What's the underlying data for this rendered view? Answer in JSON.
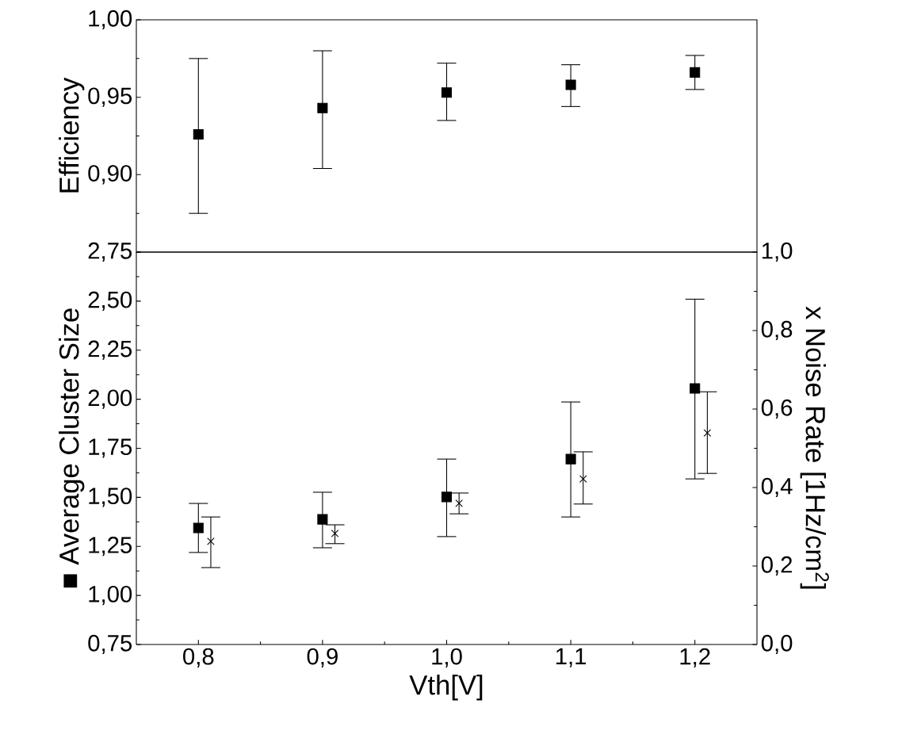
{
  "chart_data": [
    {
      "type": "scatter",
      "ylabel": "Efficiency",
      "x": [
        0.8,
        0.9,
        1.0,
        1.1,
        1.2
      ],
      "values": [
        0.926,
        0.943,
        0.953,
        0.958,
        0.966
      ],
      "errors": [
        [
          0.875,
          0.975
        ],
        [
          0.904,
          0.98
        ],
        [
          0.935,
          0.972
        ],
        [
          0.944,
          0.971
        ],
        [
          0.955,
          0.977
        ]
      ],
      "color": "#000000",
      "marker": "square",
      "xlim": [
        0.75,
        1.25
      ],
      "ylim": [
        0.85,
        1.0
      ],
      "yticks": [
        {
          "value": 0.85,
          "label": null
        },
        {
          "value": 0.9,
          "label": "0,90"
        },
        {
          "value": 0.95,
          "label": "0,95"
        },
        {
          "value": 1.0,
          "label": "1,00"
        }
      ],
      "tick_labels": "y",
      "grid": false,
      "legend": false
    },
    {
      "type": "scatter",
      "xlabel": "Vth[V]",
      "ylabel": "■ Average Cluster Size",
      "y2label": "x Noise Rate [1Hz/cm$^{2}$]",
      "series": [
        {
          "x": [
            0.8,
            0.9,
            1.0,
            1.1,
            1.2
          ],
          "values": [
            1.344,
            1.388,
            1.502,
            1.695,
            2.055
          ],
          "errors": [
            [
              1.219,
              1.469
            ],
            [
              1.243,
              1.526
            ],
            [
              1.3,
              1.695
            ],
            [
              1.4,
              1.986
            ],
            [
              1.594,
              2.51
            ]
          ],
          "color": "#000000",
          "marker": "square"
        },
        {
          "x": [
            0.81,
            0.91,
            1.01,
            1.11,
            1.21
          ],
          "values": [
            0.263,
            0.283,
            0.36,
            0.422,
            0.539
          ],
          "errors": [
            [
              0.196,
              0.325
            ],
            [
              0.257,
              0.305
            ],
            [
              0.333,
              0.386
            ],
            [
              0.358,
              0.491
            ],
            [
              0.436,
              0.644
            ]
          ],
          "color": "#000000",
          "marker": "cross",
          "axis": "y2"
        }
      ],
      "xlim": [
        0.75,
        1.25
      ],
      "ylim": [
        0.75,
        2.75
      ],
      "y2lim": [
        0.0,
        1.0
      ],
      "xticks": [
        {
          "value": 0.8,
          "label": "0,8"
        },
        {
          "value": 0.9,
          "label": "0,9"
        },
        {
          "value": 1.0,
          "label": "1,0"
        },
        {
          "value": 1.1,
          "label": "1,1"
        },
        {
          "value": 1.2,
          "label": "1,2"
        }
      ],
      "yticks": [
        {
          "value": 0.75,
          "label": "0,75"
        },
        {
          "value": 1.0,
          "label": "1,00"
        },
        {
          "value": 1.25,
          "label": "1,25"
        },
        {
          "value": 1.5,
          "label": "1,50"
        },
        {
          "value": 1.75,
          "label": "1,75"
        },
        {
          "value": 2.0,
          "label": "2,00"
        },
        {
          "value": 2.25,
          "label": "2,25"
        },
        {
          "value": 2.5,
          "label": "2,50"
        },
        {
          "value": 2.75,
          "label": "2,75"
        }
      ],
      "y2ticks": [
        {
          "value": 0.0,
          "label": "0,0"
        },
        {
          "value": 0.2,
          "label": "0,2"
        },
        {
          "value": 0.4,
          "label": "0,4"
        },
        {
          "value": 0.6,
          "label": "0,6"
        },
        {
          "value": 0.8,
          "label": "0,8"
        },
        {
          "value": 1.0,
          "label": "1,0"
        }
      ],
      "grid": false,
      "legend": false
    }
  ]
}
